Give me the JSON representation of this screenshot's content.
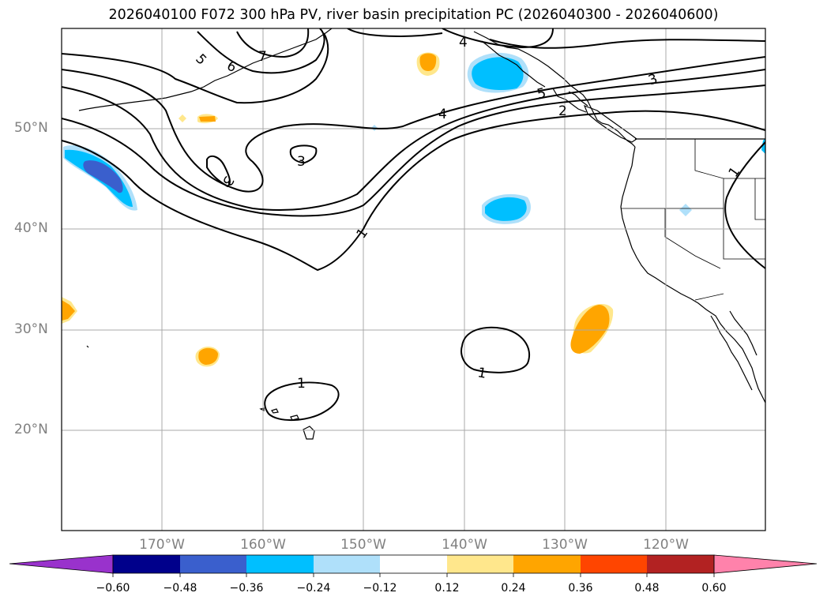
{
  "title": "2026040100 F072 300 hPa PV, river basin precipitation PC (2026040300 - 2026040600)",
  "lat_labels": [
    "50°N",
    "40°N",
    "30°N",
    "20°N"
  ],
  "lon_labels": [
    "170°W",
    "160°W",
    "150°W",
    "140°W",
    "130°W",
    "120°W"
  ],
  "pv_contour_labels": [
    "7",
    "6",
    "5",
    "4",
    "3",
    "3",
    "3",
    "2",
    "1",
    "1",
    "1",
    "1",
    "5",
    "4"
  ],
  "colorbar": {
    "ticks": [
      "−0.60",
      "−0.48",
      "−0.36",
      "−0.24",
      "−0.12",
      "0.12",
      "0.24",
      "0.36",
      "0.48",
      "0.60"
    ],
    "colors": [
      "#9932cc",
      "#00008b",
      "#3a5fcd",
      "#00bfff",
      "#afe0fa",
      "#ffffff",
      "#ffe78c",
      "#ffa500",
      "#ff4500",
      "#b22222",
      "#ff82ab"
    ]
  },
  "shading_colors": {
    "light_blue": "#afe0fa",
    "blue": "#00bfff",
    "royal_blue": "#3a5fcd",
    "light_yellow": "#ffe78c",
    "orange": "#ffa500"
  }
}
